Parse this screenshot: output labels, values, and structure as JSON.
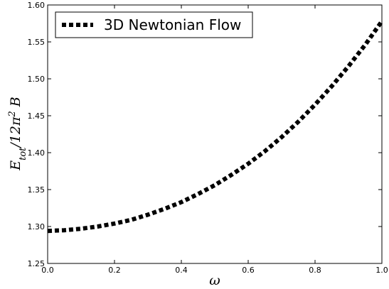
{
  "chart_data": {
    "type": "line",
    "title": "",
    "xlabel": "ω",
    "ylabel_parts": {
      "main": "E",
      "sub": "tot",
      "mid": "/12π",
      "sup": "2",
      "tail": " B"
    },
    "xlim": [
      0.0,
      1.0
    ],
    "ylim": [
      1.25,
      1.6
    ],
    "x_ticks": [
      "0.0",
      "0.2",
      "0.4",
      "0.6",
      "0.8",
      "1.0"
    ],
    "y_ticks": [
      "1.25",
      "1.30",
      "1.35",
      "1.40",
      "1.45",
      "1.50",
      "1.55",
      "1.60"
    ],
    "grid": false,
    "legend_position": "top-left",
    "series": [
      {
        "name": "3D Newtonian Flow",
        "color": "#000000",
        "style": "dotted",
        "x": [
          0.0,
          0.05,
          0.1,
          0.15,
          0.2,
          0.25,
          0.3,
          0.35,
          0.4,
          0.45,
          0.5,
          0.55,
          0.6,
          0.65,
          0.7,
          0.75,
          0.8,
          0.85,
          0.9,
          0.95,
          1.0
        ],
        "y": [
          1.294,
          1.295,
          1.297,
          1.3,
          1.304,
          1.309,
          1.316,
          1.324,
          1.333,
          1.344,
          1.356,
          1.37,
          1.385,
          1.402,
          1.421,
          1.442,
          1.465,
          1.49,
          1.517,
          1.546,
          1.578
        ]
      }
    ]
  }
}
